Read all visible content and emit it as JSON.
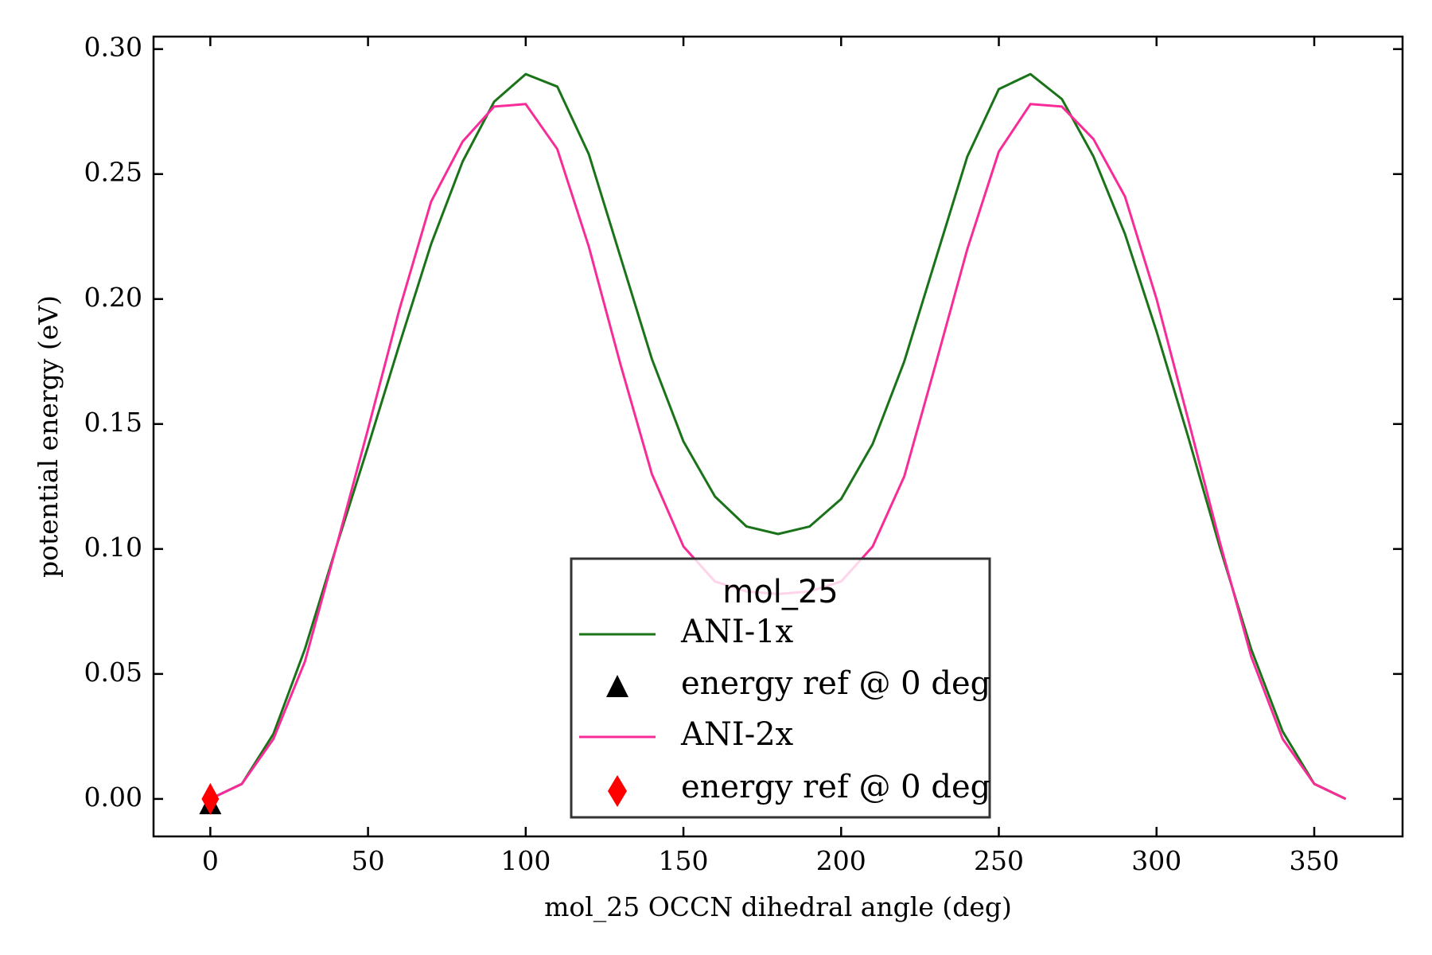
{
  "chart_data": {
    "type": "line",
    "xlabel": "mol_25 OCCN dihedral angle (deg)",
    "ylabel": "potential energy (eV)",
    "xlim": [
      -18,
      378
    ],
    "ylim": [
      -0.015,
      0.305
    ],
    "xticks": [
      0,
      50,
      100,
      150,
      200,
      250,
      300,
      350
    ],
    "yticks": [
      0.0,
      0.05,
      0.1,
      0.15,
      0.2,
      0.25,
      0.3
    ],
    "ytick_labels": [
      "0.00",
      "0.05",
      "0.10",
      "0.15",
      "0.20",
      "0.25",
      "0.30"
    ],
    "grid": false,
    "legend": {
      "title": "mol_25",
      "placement": "lower-center",
      "entries": [
        "ANI-1x",
        "energy ref @ 0 deg",
        "ANI-2x",
        "energy ref @ 0 deg"
      ]
    },
    "x": [
      0,
      10,
      20,
      30,
      40,
      50,
      60,
      70,
      80,
      90,
      100,
      110,
      120,
      130,
      140,
      150,
      160,
      170,
      180,
      190,
      200,
      210,
      220,
      230,
      240,
      250,
      260,
      270,
      280,
      290,
      300,
      310,
      320,
      330,
      340,
      350,
      360
    ],
    "series": [
      {
        "name": "ANI-1x",
        "color": "#1a7319",
        "values": [
          0.0,
          0.006,
          0.026,
          0.06,
          0.101,
          0.141,
          0.182,
          0.222,
          0.255,
          0.279,
          0.29,
          0.285,
          0.258,
          0.217,
          0.176,
          0.143,
          0.121,
          0.109,
          0.106,
          0.109,
          0.12,
          0.142,
          0.175,
          0.216,
          0.257,
          0.284,
          0.29,
          0.28,
          0.257,
          0.226,
          0.187,
          0.145,
          0.101,
          0.06,
          0.027,
          0.006,
          0.0
        ]
      },
      {
        "name": "ANI-2x",
        "color": "#f72c98",
        "values": [
          0.0,
          0.006,
          0.024,
          0.055,
          0.101,
          0.148,
          0.196,
          0.239,
          0.263,
          0.277,
          0.278,
          0.26,
          0.221,
          0.174,
          0.13,
          0.101,
          0.087,
          0.083,
          0.082,
          0.083,
          0.087,
          0.101,
          0.129,
          0.174,
          0.22,
          0.259,
          0.278,
          0.277,
          0.264,
          0.241,
          0.2,
          0.152,
          0.103,
          0.057,
          0.024,
          0.006,
          0.0
        ]
      }
    ],
    "markers": [
      {
        "name": "energy ref @ 0 deg",
        "shape": "triangle",
        "color": "#000000",
        "x": 0,
        "y": -0.002
      },
      {
        "name": "energy ref @ 0 deg",
        "shape": "diamond",
        "color": "#ff0000",
        "x": 0,
        "y": 0.0
      }
    ]
  }
}
